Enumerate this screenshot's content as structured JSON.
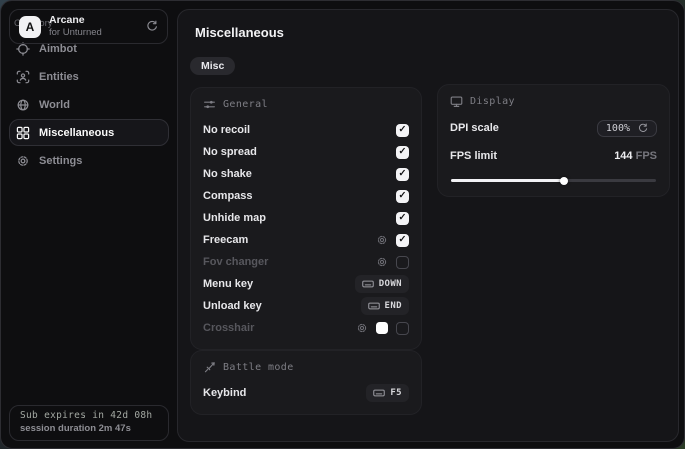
{
  "app": {
    "avatar_letter": "A",
    "name": "Arcane",
    "subtitle": "for Unturned"
  },
  "sidebar": {
    "category_label": "Category",
    "items": [
      {
        "label": "Aimbot",
        "icon": "crosshair",
        "active": false
      },
      {
        "label": "Entities",
        "icon": "scan",
        "active": false
      },
      {
        "label": "World",
        "icon": "globe",
        "active": false
      },
      {
        "label": "Miscellaneous",
        "icon": "grid",
        "active": true
      },
      {
        "label": "Settings",
        "icon": "gear",
        "active": false
      }
    ],
    "footer": {
      "line1": "Sub expires in 42d 08h",
      "line2": "session duration 2m 47s"
    }
  },
  "main": {
    "title": "Miscellaneous",
    "tabs": [
      {
        "label": "Misc"
      }
    ],
    "panels": {
      "general": {
        "title": "General",
        "icon": "sliders",
        "rows": [
          {
            "label": "No recoil",
            "type": "checkbox",
            "checked": true
          },
          {
            "label": "No spread",
            "type": "checkbox",
            "checked": true
          },
          {
            "label": "No shake",
            "type": "checkbox",
            "checked": true
          },
          {
            "label": "Compass",
            "type": "checkbox",
            "checked": true
          },
          {
            "label": "Unhide map",
            "type": "checkbox",
            "checked": true
          },
          {
            "label": "Freecam",
            "type": "checkbox",
            "checked": true,
            "gear": true
          },
          {
            "label": "Fov changer",
            "type": "checkbox",
            "checked": false,
            "gear": true,
            "disabled": true
          },
          {
            "label": "Menu key",
            "type": "keybind",
            "key": "DOWN"
          },
          {
            "label": "Unload key",
            "type": "keybind",
            "key": "END"
          },
          {
            "label": "Crosshair",
            "type": "checkbox",
            "checked": false,
            "gear": true,
            "disabled": true,
            "swatch": "#ffffff"
          }
        ]
      },
      "battle_mode": {
        "title": "Battle mode",
        "icon": "sword",
        "rows": [
          {
            "label": "Keybind",
            "type": "keybind",
            "key": "F5"
          }
        ]
      },
      "display": {
        "title": "Display",
        "icon": "monitor",
        "dpi_label": "DPI scale",
        "dpi_value": "100%",
        "fps_label": "FPS limit",
        "fps_value": "144",
        "fps_unit": "FPS",
        "fps_slider_percent": 55
      }
    }
  },
  "colors": {
    "accent": "#f2f2f5",
    "card_bg": "#1a1a1d",
    "checkbox_checked": "#f4f4f6",
    "crosshair_swatch": "#ffffff"
  }
}
